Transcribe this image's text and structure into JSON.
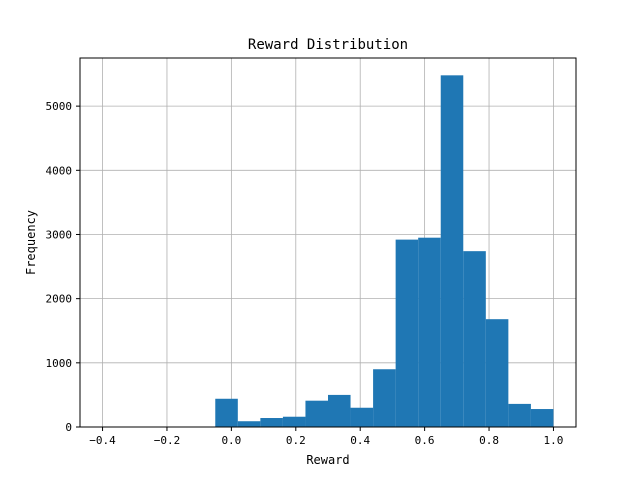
{
  "chart_data": {
    "type": "bar",
    "title": "Reward Distribution",
    "xlabel": "Reward",
    "ylabel": "Frequency",
    "xlim": [
      -0.47,
      1.07
    ],
    "ylim": [
      0,
      5750
    ],
    "grid": true,
    "bar_color": "#1f77b4",
    "grid_color": "#b0b0b0",
    "x_ticks": [
      {
        "value": -0.4,
        "label": "−0.4"
      },
      {
        "value": -0.2,
        "label": "−0.2"
      },
      {
        "value": 0.0,
        "label": "0.0"
      },
      {
        "value": 0.2,
        "label": "0.2"
      },
      {
        "value": 0.4,
        "label": "0.4"
      },
      {
        "value": 0.6,
        "label": "0.6"
      },
      {
        "value": 0.8,
        "label": "0.8"
      },
      {
        "value": 1.0,
        "label": "1.0"
      }
    ],
    "y_ticks": [
      {
        "value": 0,
        "label": "0"
      },
      {
        "value": 1000,
        "label": "1000"
      },
      {
        "value": 2000,
        "label": "2000"
      },
      {
        "value": 3000,
        "label": "3000"
      },
      {
        "value": 4000,
        "label": "4000"
      },
      {
        "value": 5000,
        "label": "5000"
      }
    ],
    "bins": [
      {
        "x0": -0.4,
        "x1": -0.33,
        "value": 0
      },
      {
        "x0": -0.33,
        "x1": -0.26,
        "value": 0
      },
      {
        "x0": -0.26,
        "x1": -0.19,
        "value": 0
      },
      {
        "x0": -0.19,
        "x1": -0.12,
        "value": 0
      },
      {
        "x0": -0.12,
        "x1": -0.05,
        "value": 0
      },
      {
        "x0": -0.05,
        "x1": 0.02,
        "value": 440
      },
      {
        "x0": 0.02,
        "x1": 0.09,
        "value": 90
      },
      {
        "x0": 0.09,
        "x1": 0.16,
        "value": 140
      },
      {
        "x0": 0.16,
        "x1": 0.23,
        "value": 160
      },
      {
        "x0": 0.23,
        "x1": 0.3,
        "value": 410
      },
      {
        "x0": 0.3,
        "x1": 0.37,
        "value": 500
      },
      {
        "x0": 0.37,
        "x1": 0.44,
        "value": 300
      },
      {
        "x0": 0.44,
        "x1": 0.51,
        "value": 900
      },
      {
        "x0": 0.51,
        "x1": 0.58,
        "value": 2920
      },
      {
        "x0": 0.58,
        "x1": 0.65,
        "value": 2950
      },
      {
        "x0": 0.65,
        "x1": 0.72,
        "value": 5480
      },
      {
        "x0": 0.72,
        "x1": 0.79,
        "value": 2740
      },
      {
        "x0": 0.79,
        "x1": 0.86,
        "value": 1680
      },
      {
        "x0": 0.86,
        "x1": 0.93,
        "value": 360
      },
      {
        "x0": 0.93,
        "x1": 1.0,
        "value": 280
      }
    ]
  }
}
